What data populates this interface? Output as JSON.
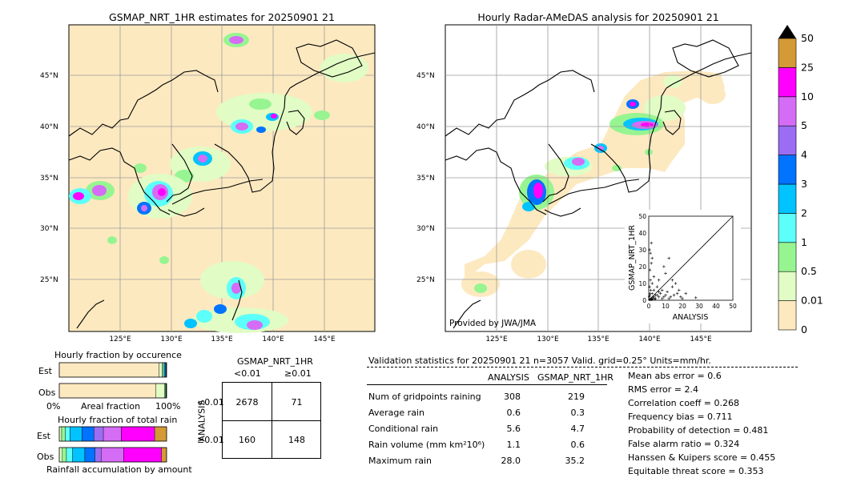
{
  "colors": {
    "land_bg": "#fde9c0",
    "sea_bg": "#ffffff",
    "scale": [
      "#fde9c0",
      "#e1fcc4",
      "#97f591",
      "#5cfff9",
      "#00c3ff",
      "#0073ff",
      "#9a6df2",
      "#d56cf5",
      "#ff00ff",
      "#d39a36"
    ]
  },
  "left_map": {
    "title": "GSMAP_NRT_1HR estimates for 20250901 21",
    "lat_labels": [
      "45°N",
      "40°N",
      "35°N",
      "30°N",
      "25°N"
    ],
    "lon_labels": [
      "125°E",
      "130°E",
      "135°E",
      "140°E",
      "145°E"
    ]
  },
  "right_map": {
    "title": "Hourly Radar-AMeDAS analysis for 20250901 21",
    "lat_labels": [
      "45°N",
      "40°N",
      "35°N",
      "30°N",
      "25°N"
    ],
    "lon_labels": [
      "125°E",
      "130°E",
      "135°E",
      "140°E",
      "145°E"
    ],
    "credit": "Provided by JWA/JMA"
  },
  "colorbar": {
    "labels": [
      "0",
      "0.01",
      "0.5",
      "1",
      "2",
      "3",
      "4",
      "5",
      "10",
      "25",
      "50"
    ]
  },
  "chart_data": [
    {
      "type": "scatter",
      "title": "",
      "xlabel": "ANALYSIS",
      "ylabel": "GSMAP_NRT_1HR",
      "xlim": [
        0,
        50
      ],
      "ylim": [
        0,
        50
      ],
      "xticks": [
        "0",
        "10",
        "20",
        "30",
        "40",
        "50"
      ],
      "yticks": [
        "0",
        "10",
        "20",
        "30",
        "40",
        "50"
      ],
      "points": [
        [
          0.5,
          0.3
        ],
        [
          1,
          0.5
        ],
        [
          1.5,
          1
        ],
        [
          2,
          0.8
        ],
        [
          2.5,
          1.5
        ],
        [
          3,
          2
        ],
        [
          0.8,
          4
        ],
        [
          1.2,
          6
        ],
        [
          0.5,
          8
        ],
        [
          2,
          10
        ],
        [
          1,
          12
        ],
        [
          3,
          14
        ],
        [
          0.7,
          18
        ],
        [
          1.5,
          22
        ],
        [
          2,
          25
        ],
        [
          1,
          28
        ],
        [
          1.5,
          34
        ],
        [
          0.5,
          30
        ],
        [
          4,
          1
        ],
        [
          5,
          3
        ],
        [
          6,
          2
        ],
        [
          7,
          4
        ],
        [
          8,
          1
        ],
        [
          9,
          2
        ],
        [
          10,
          3
        ],
        [
          11,
          5
        ],
        [
          12,
          1
        ],
        [
          13,
          2
        ],
        [
          14,
          8
        ],
        [
          15,
          3
        ],
        [
          17,
          4
        ],
        [
          19,
          2
        ],
        [
          20,
          1
        ],
        [
          28,
          1.5
        ],
        [
          5,
          8
        ],
        [
          6,
          12
        ],
        [
          8,
          6
        ],
        [
          3,
          6
        ],
        [
          2,
          4
        ],
        [
          4,
          3
        ],
        [
          6,
          5
        ],
        [
          9,
          20
        ],
        [
          14,
          12
        ],
        [
          18,
          6
        ],
        [
          22,
          4
        ],
        [
          16,
          10
        ],
        [
          0.3,
          2
        ],
        [
          0.6,
          3
        ],
        [
          1.8,
          0.4
        ],
        [
          3.5,
          0.6
        ],
        [
          12,
          25
        ],
        [
          10,
          16
        ]
      ]
    },
    {
      "type": "bar",
      "title": "Hourly fraction by occurence",
      "categories": [
        "Est",
        "Obs"
      ],
      "xlabel": "Areal fraction",
      "xticks": [
        "0%",
        "100%"
      ],
      "series_colors": [
        "#fde9c0",
        "#e1fcc4",
        "#97f591",
        "#5cfff9",
        "#00c3ff",
        "#0073ff",
        "#9a6df2"
      ],
      "values": [
        [
          0.93,
          0.03,
          0.01,
          0.01,
          0.01,
          0.005,
          0.005
        ],
        [
          0.9,
          0.08,
          0.01,
          0.005,
          0.003,
          0.001,
          0.001
        ]
      ]
    },
    {
      "type": "bar",
      "title": "Hourly fraction of total rain",
      "categories": [
        "Est",
        "Obs"
      ],
      "xlabel": "Rainfall accumulation by amount",
      "series_colors": [
        "#e1fcc4",
        "#97f591",
        "#5cfff9",
        "#00c3ff",
        "#0073ff",
        "#9a6df2",
        "#d56cf5",
        "#ff00ff",
        "#d39a36"
      ],
      "values": [
        [
          0.02,
          0.03,
          0.04,
          0.1,
          0.1,
          0.08,
          0.15,
          0.28,
          0.1
        ],
        [
          0.03,
          0.04,
          0.06,
          0.12,
          0.1,
          0.06,
          0.22,
          0.37,
          0.05
        ]
      ]
    },
    {
      "type": "table",
      "title": "GSMAP_NRT_1HR",
      "col_headers": [
        "<0.01",
        "≥0.01"
      ],
      "row_label": "ANALYSIS",
      "row_headers": [
        "<0.01",
        "≥0.01"
      ],
      "cells": [
        [
          "2678",
          "71"
        ],
        [
          "160",
          "148"
        ]
      ]
    }
  ],
  "validation": {
    "header": "Validation statistics for 20250901 21  n=3057 Valid. grid=0.25° Units=mm/hr.",
    "col_analysis": "ANALYSIS",
    "col_gsmap": "GSMAP_NRT_1HR",
    "rows": [
      {
        "label": "Num of gridpoints raining",
        "a": "308",
        "g": "219"
      },
      {
        "label": "Average rain",
        "a": "0.6",
        "g": "0.3"
      },
      {
        "label": "Conditional rain",
        "a": "5.6",
        "g": "4.7"
      },
      {
        "label": "Rain volume (mm km²10⁶)",
        "a": "1.1",
        "g": "0.6"
      },
      {
        "label": "Maximum rain",
        "a": "28.0",
        "g": "35.2"
      }
    ],
    "scores": [
      "Mean abs error =    0.6",
      "RMS error =    2.4",
      "Correlation coeff =  0.268",
      "Frequency bias =  0.711",
      "Probability of detection =  0.481",
      "False alarm ratio =  0.324",
      "Hanssen & Kuipers score =  0.455",
      "Equitable threat score =  0.353"
    ]
  }
}
